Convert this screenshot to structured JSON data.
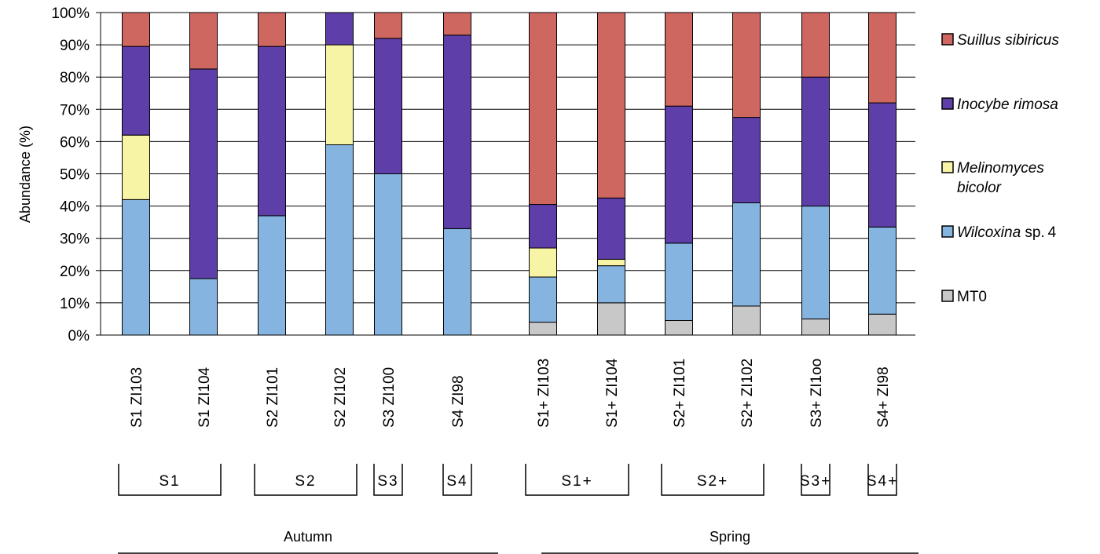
{
  "chart_data": {
    "type": "bar",
    "stacked": true,
    "percent": true,
    "ylabel": "Abundance (%)",
    "ylim": [
      0,
      100
    ],
    "yticks": [
      "0%",
      "10%",
      "20%",
      "30%",
      "40%",
      "50%",
      "60%",
      "70%",
      "80%",
      "90%",
      "100%"
    ],
    "grid": true,
    "legend_position": "right",
    "categories": [
      "S1 ZI103",
      "S1 ZI104",
      "S2 ZI101",
      "S2 ZI102",
      "S3 ZI100",
      "S4 ZI98",
      "S1+ ZI103",
      "S1+ ZI104",
      "S2+ ZI101",
      "S2+ ZI102",
      "S3+ ZI1oo",
      "S4+ ZI98"
    ],
    "series": [
      {
        "name": "MT0",
        "color": "#c8c8c8",
        "values": [
          0,
          0,
          0,
          0,
          0,
          0,
          4,
          10,
          4.5,
          9,
          5,
          6.5
        ]
      },
      {
        "name": "Wilcoxina sp. 4",
        "color": "#84b4df",
        "values": [
          42,
          17.5,
          37,
          59,
          50,
          33,
          14,
          11.5,
          24,
          32,
          35,
          27
        ]
      },
      {
        "name": "Melinomyces bicolor",
        "color": "#f8f4a6",
        "values": [
          20,
          0,
          0,
          31,
          0,
          0,
          9,
          2,
          0,
          0,
          0,
          0
        ]
      },
      {
        "name": "Inocybe rimosa",
        "color": "#5e3ea8",
        "values": [
          27.5,
          65,
          52.5,
          10,
          42,
          60,
          13.5,
          19,
          42.5,
          26.5,
          40,
          38.5
        ]
      },
      {
        "name": "Suillus sibiricus",
        "color": "#cf6761",
        "values": [
          10.5,
          17.5,
          10.5,
          0,
          8,
          7,
          59.5,
          57.5,
          29,
          32.5,
          20,
          28
        ]
      }
    ],
    "groups": [
      {
        "label": "S1",
        "from": 0,
        "to": 1
      },
      {
        "label": "S2",
        "from": 2,
        "to": 3
      },
      {
        "label": "S3",
        "from": 4,
        "to": 4
      },
      {
        "label": "S4",
        "from": 5,
        "to": 5
      },
      {
        "label": "S1+",
        "from": 6,
        "to": 7
      },
      {
        "label": "S2+",
        "from": 8,
        "to": 9
      },
      {
        "label": "S3+",
        "from": 10,
        "to": 10
      },
      {
        "label": "S4+",
        "from": 11,
        "to": 11
      }
    ],
    "seasons": [
      {
        "label": "Autumn",
        "from": 0,
        "to": 5
      },
      {
        "label": "Spring",
        "from": 6,
        "to": 11
      }
    ],
    "legend": [
      {
        "series": "Suillus sibiricus",
        "lines": [
          {
            "t": "Suillus sibiricus",
            "italic": true
          }
        ]
      },
      {
        "series": "Inocybe rimosa",
        "lines": [
          {
            "t": "Inocybe rimosa",
            "italic": true
          }
        ]
      },
      {
        "series": "Melinomyces bicolor",
        "lines": [
          {
            "t": "Melinomyces",
            "italic": true
          },
          {
            "t": "bicolor",
            "italic": true
          }
        ]
      },
      {
        "series": "Wilcoxina sp. 4",
        "lines": [
          {
            "t": "Wilcoxina",
            "italic": true,
            "rest": " sp. 4"
          }
        ]
      },
      {
        "series": "MT0",
        "lines": [
          {
            "t": "MT0",
            "italic": false
          }
        ]
      }
    ]
  }
}
